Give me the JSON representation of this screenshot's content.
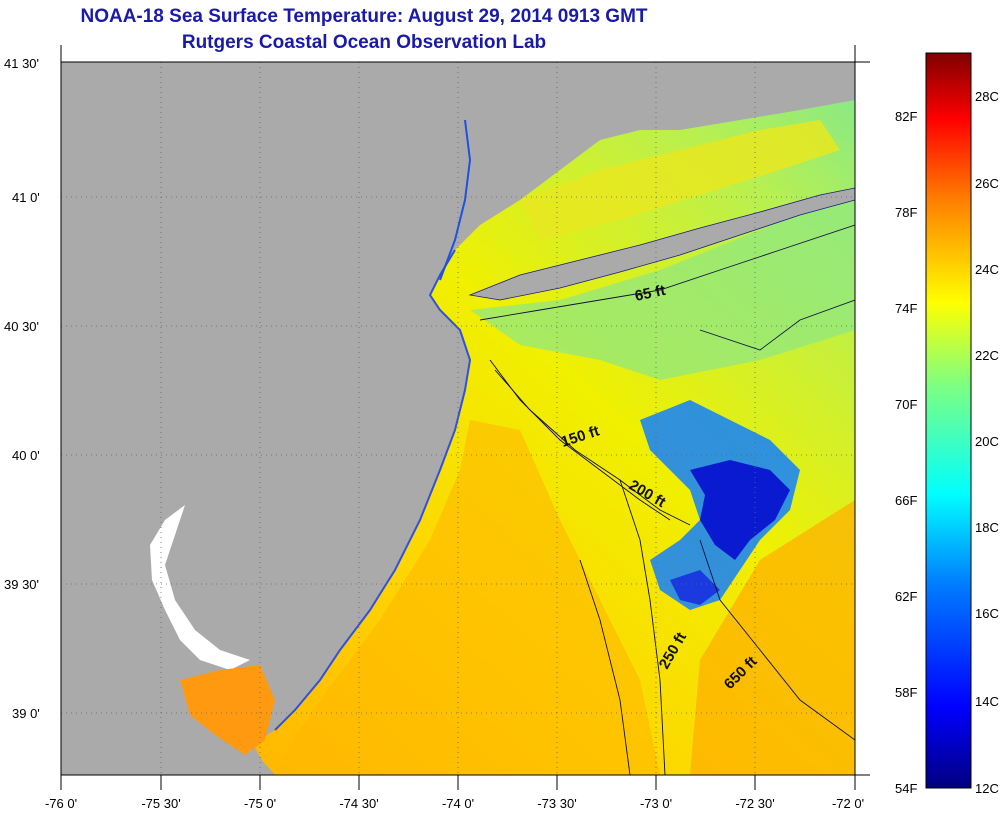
{
  "title": "NOAA-18 Sea Surface Temperature:  August 29, 2014 0913 GMT",
  "subtitle": "Rutgers Coastal Ocean Observation Lab",
  "lat_ticks": [
    "41 30'",
    "41 0'",
    "40 30'",
    "40 0'",
    "39 30'",
    "39 0'"
  ],
  "lon_ticks": [
    "-76 0'",
    "-75 30'",
    "-75 0'",
    "-74 30'",
    "-74 0'",
    "-73 30'",
    "-73 0'",
    "-72 30'",
    "-72 0'"
  ],
  "depth_labels": [
    "65 ft",
    "150 ft",
    "200 ft",
    "250 ft",
    "650 ft"
  ],
  "colorbar": {
    "fahrenheit_ticks": [
      "82F",
      "78F",
      "74F",
      "70F",
      "66F",
      "62F",
      "58F",
      "54F"
    ],
    "celsius_ticks": [
      "28C",
      "26C",
      "24C",
      "22C",
      "20C",
      "18C",
      "16C",
      "14C",
      "12C"
    ],
    "range_c": [
      12,
      29.5
    ],
    "colors": [
      "#00007f",
      "#0000ff",
      "#007fff",
      "#00ffff",
      "#7fff7f",
      "#ffff00",
      "#ff7f00",
      "#ff0000",
      "#7f0000"
    ]
  },
  "colors": {
    "land": "#aaaaaa",
    "title": "#1a1aa8",
    "sea_warm": "#ffb000",
    "sea_mid": "#f2e600",
    "sea_cool": "#7de07d",
    "cold_patch": "#0a1ad0"
  }
}
